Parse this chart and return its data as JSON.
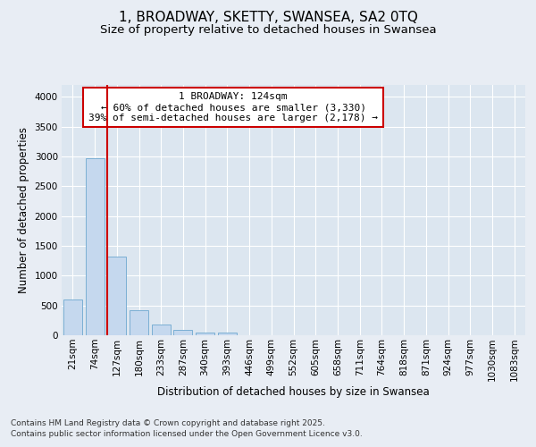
{
  "title_line1": "1, BROADWAY, SKETTY, SWANSEA, SA2 0TQ",
  "title_line2": "Size of property relative to detached houses in Swansea",
  "xlabel": "Distribution of detached houses by size in Swansea",
  "ylabel": "Number of detached properties",
  "categories": [
    "21sqm",
    "74sqm",
    "127sqm",
    "180sqm",
    "233sqm",
    "287sqm",
    "340sqm",
    "393sqm",
    "446sqm",
    "499sqm",
    "552sqm",
    "605sqm",
    "658sqm",
    "711sqm",
    "764sqm",
    "818sqm",
    "871sqm",
    "924sqm",
    "977sqm",
    "1030sqm",
    "1083sqm"
  ],
  "values": [
    600,
    2975,
    1325,
    425,
    175,
    90,
    50,
    40,
    0,
    0,
    0,
    0,
    0,
    0,
    0,
    0,
    0,
    0,
    0,
    0,
    0
  ],
  "bar_color": "#c5d8ee",
  "bar_edge_color": "#7bafd4",
  "vline_color": "#cc0000",
  "annotation_text": "1 BROADWAY: 124sqm\n← 60% of detached houses are smaller (3,330)\n39% of semi-detached houses are larger (2,178) →",
  "annotation_box_color": "#ffffff",
  "annotation_box_edge_color": "#cc0000",
  "ylim": [
    0,
    4200
  ],
  "yticks": [
    0,
    500,
    1000,
    1500,
    2000,
    2500,
    3000,
    3500,
    4000
  ],
  "background_color": "#e8edf4",
  "plot_bg_color": "#dce6f0",
  "grid_color": "#ffffff",
  "footer_line1": "Contains HM Land Registry data © Crown copyright and database right 2025.",
  "footer_line2": "Contains public sector information licensed under the Open Government Licence v3.0.",
  "title_fontsize": 11,
  "subtitle_fontsize": 9.5,
  "axis_label_fontsize": 8.5,
  "tick_fontsize": 7.5,
  "annotation_fontsize": 8,
  "footer_fontsize": 6.5
}
